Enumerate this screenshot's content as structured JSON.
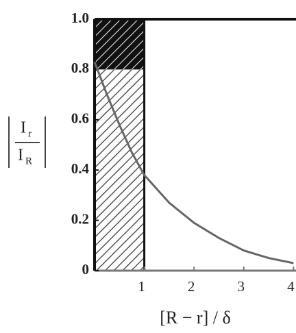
{
  "chart_data": {
    "type": "line",
    "ylabel": {
      "numerator": "I",
      "numerator_sub": "r",
      "denominator": "I",
      "denominator_sub": "R"
    },
    "xlabel": "[R − r] / δ",
    "x": [
      0,
      0.25,
      0.5,
      0.75,
      1,
      1.5,
      2,
      2.5,
      3,
      3.5,
      4
    ],
    "series": [
      {
        "color": "#666666",
        "values": [
          0.83,
          0.7,
          0.58,
          0.47,
          0.38,
          0.27,
          0.19,
          0.13,
          0.08,
          0.05,
          0.03
        ]
      }
    ],
    "shaded_region": {
      "x": [
        0,
        1
      ],
      "y": [
        0,
        1
      ],
      "dark_above": 0.8
    },
    "xlim": [
      0,
      4.05
    ],
    "ylim": [
      0,
      1
    ],
    "xticks": [
      1,
      2,
      3,
      4
    ],
    "yticks": [
      0,
      0.2,
      0.4,
      0.6,
      0.8,
      {
        "value": 1,
        "label": "1.0"
      }
    ],
    "grid": false
  }
}
